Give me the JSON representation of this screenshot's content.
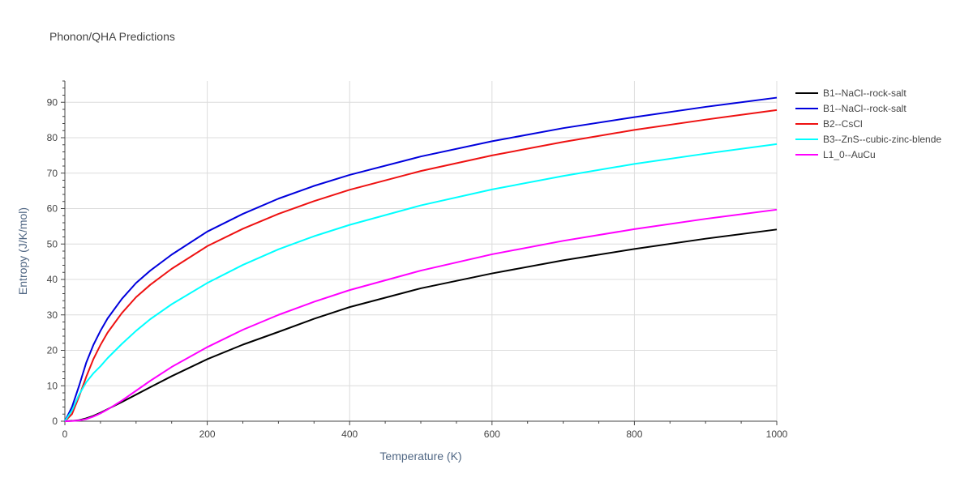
{
  "chart_data": {
    "type": "line",
    "title": "Phonon/QHA Predictions",
    "xlabel": "Temperature (K)",
    "ylabel": "Entropy (J/K/mol)",
    "xlim": [
      0,
      1000
    ],
    "ylim": [
      0,
      96
    ],
    "xticks": [
      0,
      200,
      400,
      600,
      800,
      1000
    ],
    "yticks": [
      0,
      10,
      20,
      30,
      40,
      50,
      60,
      70,
      80,
      90
    ],
    "grid": true,
    "legend_position": "top-right",
    "series": [
      {
        "name": "B1--NaCl--rock-salt",
        "color": "#000000",
        "x": [
          0,
          10,
          20,
          30,
          40,
          50,
          60,
          80,
          100,
          120,
          150,
          200,
          250,
          300,
          350,
          400,
          500,
          600,
          700,
          800,
          900,
          1000
        ],
        "y": [
          0,
          0.1,
          0.3,
          0.8,
          1.5,
          2.4,
          3.4,
          5.4,
          7.5,
          9.6,
          12.7,
          17.5,
          21.6,
          25.2,
          28.9,
          32.2,
          37.5,
          41.7,
          45.4,
          48.6,
          51.5,
          54.1
        ]
      },
      {
        "name": "B1--NaCl--rock-salt",
        "color": "#0000dd",
        "x": [
          0,
          10,
          20,
          30,
          40,
          50,
          60,
          80,
          100,
          120,
          150,
          200,
          250,
          300,
          350,
          400,
          500,
          600,
          700,
          800,
          900,
          1000
        ],
        "y": [
          0,
          4.0,
          10.0,
          16.5,
          21.5,
          25.5,
          29.0,
          34.5,
          39.0,
          42.5,
          47.0,
          53.5,
          58.5,
          62.8,
          66.4,
          69.5,
          74.7,
          79.0,
          82.7,
          85.8,
          88.7,
          91.3
        ]
      },
      {
        "name": "B2--CsCl",
        "color": "#ee1111",
        "x": [
          0,
          10,
          20,
          30,
          40,
          50,
          60,
          80,
          100,
          120,
          150,
          200,
          250,
          300,
          350,
          400,
          500,
          600,
          700,
          800,
          900,
          1000
        ],
        "y": [
          0,
          2.0,
          7.0,
          12.5,
          17.5,
          21.5,
          25.0,
          30.5,
          35.0,
          38.5,
          43.0,
          49.4,
          54.3,
          58.5,
          62.1,
          65.3,
          70.6,
          75.0,
          78.8,
          82.2,
          85.1,
          87.8
        ]
      },
      {
        "name": "B3--ZnS--cubic-zinc-blende",
        "color": "#00ffff",
        "x": [
          0,
          10,
          20,
          30,
          40,
          50,
          60,
          80,
          100,
          120,
          150,
          200,
          250,
          300,
          350,
          400,
          500,
          600,
          700,
          800,
          900,
          1000
        ],
        "y": [
          0,
          3.0,
          7.5,
          11.0,
          13.5,
          15.5,
          17.8,
          21.8,
          25.5,
          28.8,
          33.0,
          39.0,
          44.1,
          48.5,
          52.2,
          55.4,
          60.9,
          65.4,
          69.2,
          72.6,
          75.5,
          78.2
        ]
      },
      {
        "name": "L1_0--AuCu",
        "color": "#ff00ff",
        "x": [
          0,
          10,
          20,
          30,
          40,
          50,
          60,
          80,
          100,
          120,
          150,
          200,
          250,
          300,
          350,
          400,
          500,
          600,
          700,
          800,
          900,
          1000
        ],
        "y": [
          0,
          0.05,
          0.2,
          0.6,
          1.3,
          2.2,
          3.3,
          5.8,
          8.6,
          11.4,
          15.3,
          20.9,
          25.8,
          30.0,
          33.7,
          37.0,
          42.5,
          47.1,
          50.9,
          54.2,
          57.1,
          59.7
        ]
      }
    ]
  }
}
